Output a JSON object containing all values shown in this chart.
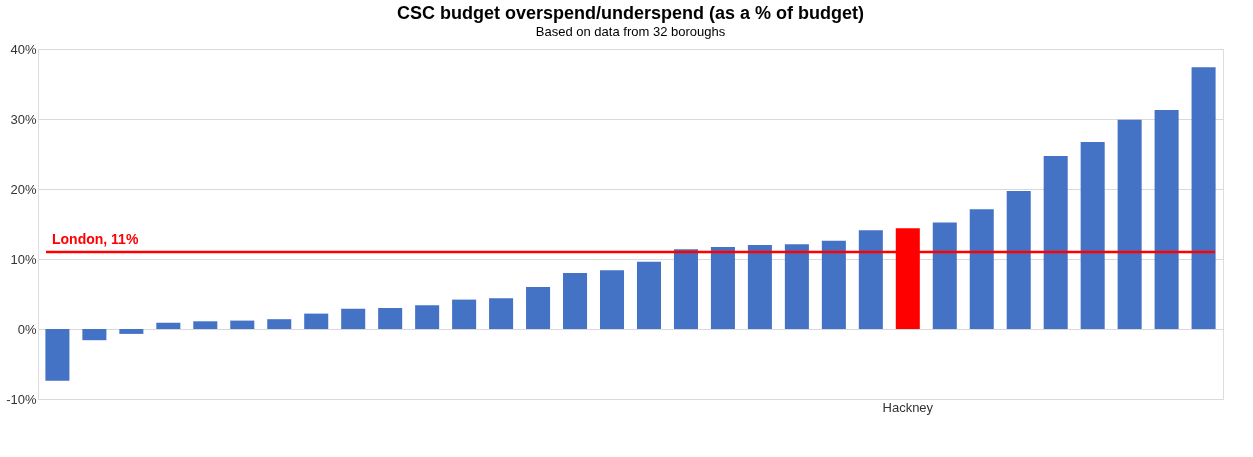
{
  "chart_data": {
    "type": "bar",
    "title": "CSC budget overspend/underspend (as a % of budget)",
    "subtitle": "Based on data from 32 boroughs",
    "categories": [
      null,
      null,
      null,
      null,
      null,
      null,
      null,
      null,
      null,
      null,
      null,
      null,
      null,
      null,
      null,
      null,
      null,
      null,
      null,
      null,
      null,
      null,
      null,
      "Hackney",
      null,
      null,
      null,
      null,
      null,
      null,
      null,
      null
    ],
    "values": [
      -7.4,
      -1.6,
      -0.7,
      0.9,
      1.1,
      1.2,
      1.4,
      2.2,
      2.9,
      3.0,
      3.4,
      4.2,
      4.4,
      6.0,
      8.0,
      8.4,
      9.6,
      11.4,
      11.7,
      12.0,
      12.1,
      12.6,
      14.1,
      14.4,
      15.2,
      17.1,
      19.7,
      24.7,
      26.7,
      29.9,
      31.3,
      37.4
    ],
    "colors": [
      "#4472c4",
      "#4472c4",
      "#4472c4",
      "#4472c4",
      "#4472c4",
      "#4472c4",
      "#4472c4",
      "#4472c4",
      "#4472c4",
      "#4472c4",
      "#4472c4",
      "#4472c4",
      "#4472c4",
      "#4472c4",
      "#4472c4",
      "#4472c4",
      "#4472c4",
      "#4472c4",
      "#4472c4",
      "#4472c4",
      "#4472c4",
      "#4472c4",
      "#4472c4",
      "#ff0000",
      "#4472c4",
      "#4472c4",
      "#4472c4",
      "#4472c4",
      "#4472c4",
      "#4472c4",
      "#4472c4",
      "#4472c4"
    ],
    "ylim": [
      -10,
      40
    ],
    "yticks": [
      {
        "value": -10,
        "label": "-10%"
      },
      {
        "value": 0,
        "label": "0%"
      },
      {
        "value": 10,
        "label": "10%"
      },
      {
        "value": 20,
        "label": "20%"
      },
      {
        "value": 30,
        "label": "30%"
      },
      {
        "value": 40,
        "label": "40%"
      }
    ],
    "ref_lines": [
      {
        "axis": "y",
        "value": 11,
        "label": "London, 11%",
        "color": "#ff0000"
      }
    ],
    "grid": "y"
  }
}
